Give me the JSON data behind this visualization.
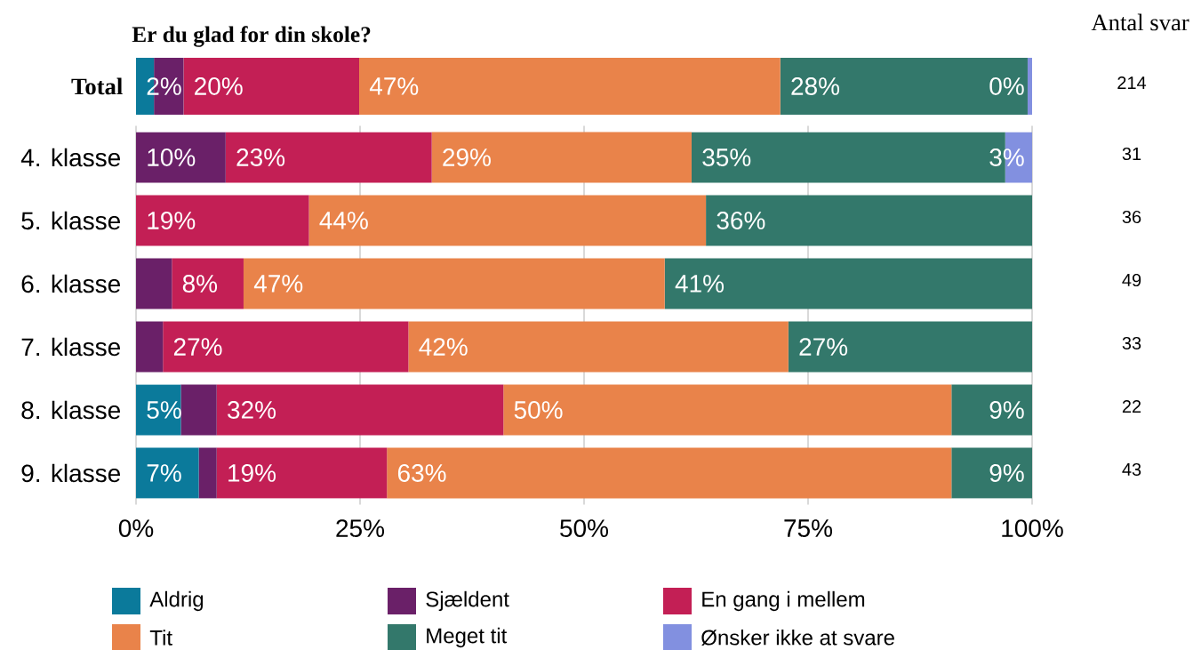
{
  "chart_data": [
    {
      "type": "bar",
      "orientation": "horizontal",
      "stacked": true,
      "title": "Er du glad for din skole?",
      "categories": [
        "Total"
      ],
      "xlim": [
        0,
        100
      ],
      "tick_labels": "y",
      "grid": "x",
      "series": [
        {
          "color": "#0b7a9b",
          "values": [
            2
          ],
          "value_labels": [
            "2%"
          ]
        },
        {
          "color": "#6a2068",
          "values": [
            3.3
          ],
          "value_labels": [
            null
          ]
        },
        {
          "color": "#c31f55",
          "values": [
            19.6
          ],
          "value_labels": [
            "20%"
          ]
        },
        {
          "color": "#e9834a",
          "values": [
            47
          ],
          "value_labels": [
            "47%"
          ]
        },
        {
          "color": "#33786b",
          "values": [
            27.6
          ],
          "value_labels": [
            "28%"
          ]
        },
        {
          "color": "#8290e0",
          "values": [
            0.5
          ],
          "value_labels": [
            "0%"
          ]
        }
      ],
      "annotations": [
        "Antal svar",
        "214"
      ]
    },
    {
      "type": "bar",
      "orientation": "horizontal",
      "stacked": true,
      "categories": [
        "4. klasse",
        "5. klasse",
        "6. klasse",
        "7. klasse",
        "8. klasse",
        "9. klasse"
      ],
      "xlim": [
        0,
        100
      ],
      "grid": "x",
      "legend": "bottom",
      "xticks": [
        {
          "value": 0,
          "label": "0%"
        },
        {
          "value": 25,
          "label": "25%"
        },
        {
          "value": 50,
          "label": "50%"
        },
        {
          "value": 75,
          "label": "75%"
        },
        {
          "value": 100,
          "label": "100%"
        }
      ],
      "series": [
        {
          "name": "Aldrig",
          "color": "#0b7a9b",
          "values": [
            0,
            0,
            0,
            0,
            5,
            7
          ],
          "value_labels": [
            null,
            null,
            null,
            null,
            "5%",
            "7%"
          ]
        },
        {
          "name": "Sjældent",
          "color": "#6a2068",
          "values": [
            10,
            0,
            4,
            3,
            4,
            2
          ],
          "value_labels": [
            "10%",
            null,
            null,
            null,
            null,
            null
          ]
        },
        {
          "name": "En gang i mellem",
          "color": "#c31f55",
          "values": [
            23,
            19.3,
            8,
            27.4,
            32,
            19
          ],
          "value_labels": [
            "23%",
            "19%",
            "8%",
            "27%",
            "32%",
            "19%"
          ]
        },
        {
          "name": "Tit",
          "color": "#e9834a",
          "values": [
            29,
            44.3,
            47,
            42.4,
            50,
            63
          ],
          "value_labels": [
            "29%",
            "44%",
            "47%",
            "42%",
            "50%",
            "63%"
          ]
        },
        {
          "name": "Meget tit",
          "color": "#33786b",
          "values": [
            35,
            36.4,
            41,
            27.2,
            9,
            9
          ],
          "value_labels": [
            "35%",
            "36%",
            "41%",
            "27%",
            "9%",
            "9%"
          ]
        },
        {
          "name": "Ønsker ikke at svare",
          "color": "#8290e0",
          "values": [
            3,
            0,
            0,
            0,
            0,
            0
          ],
          "value_labels": [
            "3%",
            null,
            null,
            null,
            null,
            null
          ]
        }
      ],
      "annotations": [
        "31",
        "36",
        "49",
        "33",
        "22",
        "43"
      ]
    }
  ]
}
